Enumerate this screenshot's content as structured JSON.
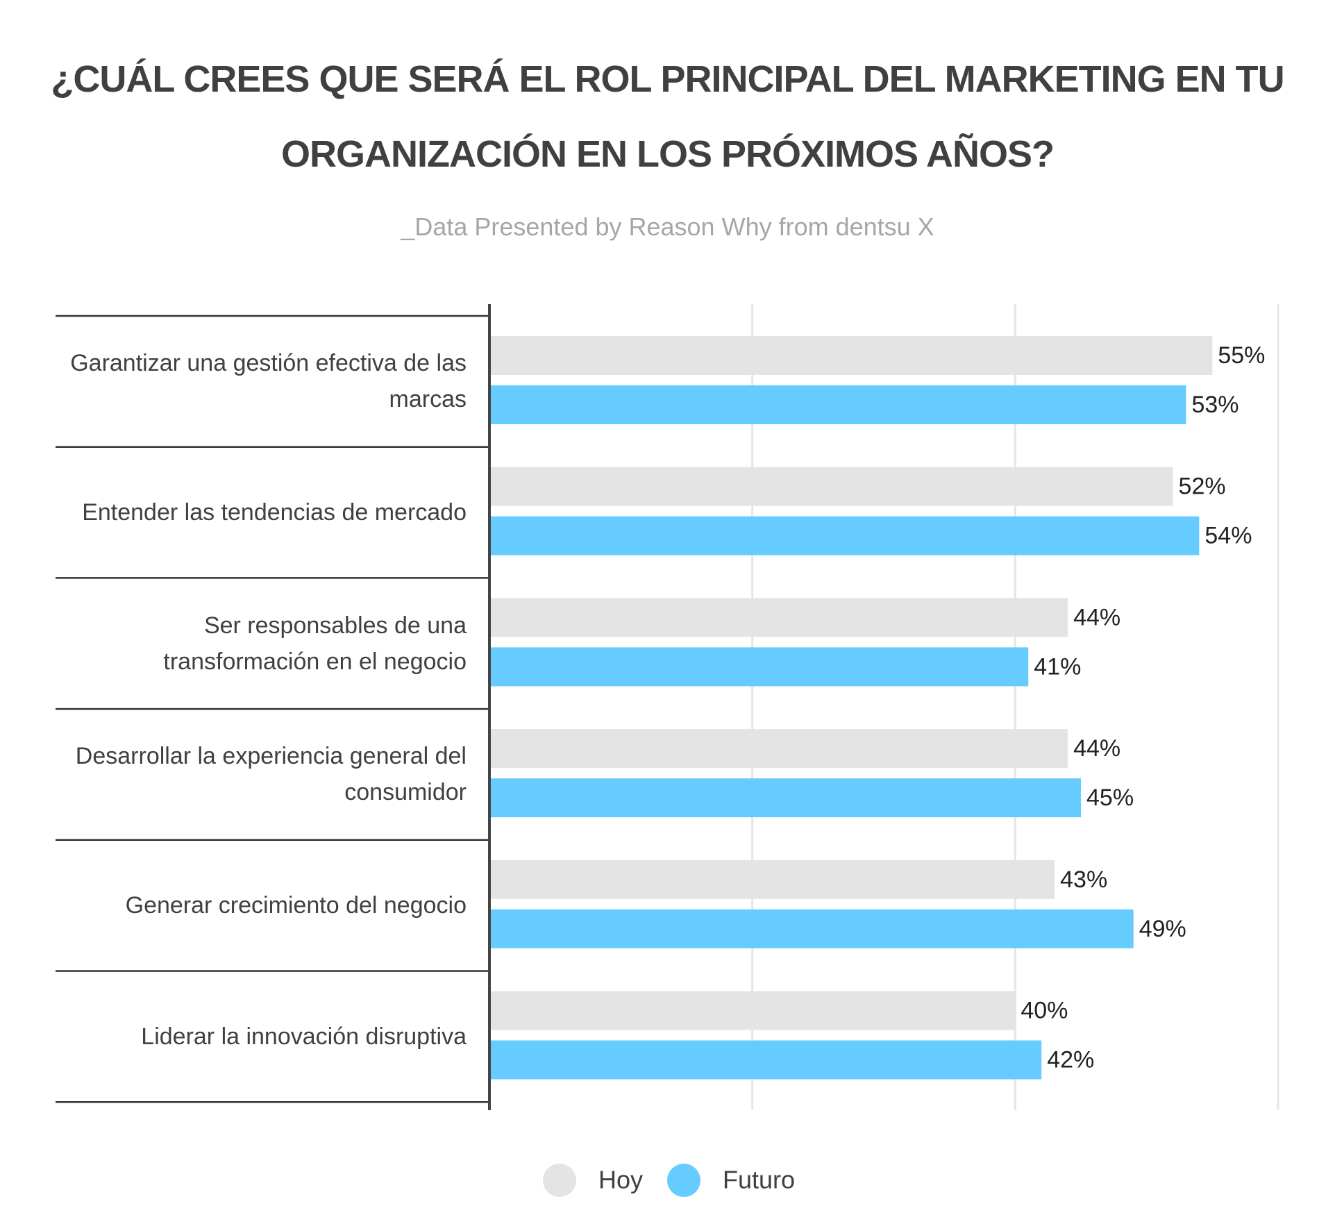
{
  "chart_data": {
    "type": "hbar",
    "title": "¿CUÁL CREES QUE SERÁ EL ROL PRINCIPAL DEL MARKETING EN TU ORGANIZACIÓN EN LOS PRÓXIMOS AÑOS?",
    "subtitle": "_Data Presented by Reason Why from dentsu X",
    "categories": [
      "Garantizar una gestión efectiva de las marcas",
      "Entender las tendencias de mercado",
      "Ser responsables de una transformación en el negocio",
      "Desarrollar la experiencia general del consumidor",
      "Generar crecimiento del negocio",
      "Liderar la innovación disruptiva"
    ],
    "series": [
      {
        "name": "Hoy",
        "color": "#e4e4e4",
        "values": [
          55,
          52,
          44,
          44,
          43,
          40
        ],
        "value_labels": [
          "55%",
          "52%",
          "44%",
          "44%",
          "43%",
          "40%"
        ]
      },
      {
        "name": "Futuro",
        "color": "#66ccff",
        "values": [
          53,
          54,
          41,
          45,
          49,
          42
        ],
        "value_labels": [
          "53%",
          "54%",
          "41%",
          "45%",
          "49%",
          "42%"
        ]
      }
    ],
    "xlim": [
      0,
      60
    ],
    "xticks": [
      0,
      20,
      40,
      60
    ],
    "grid": true,
    "legend": "bottom"
  }
}
